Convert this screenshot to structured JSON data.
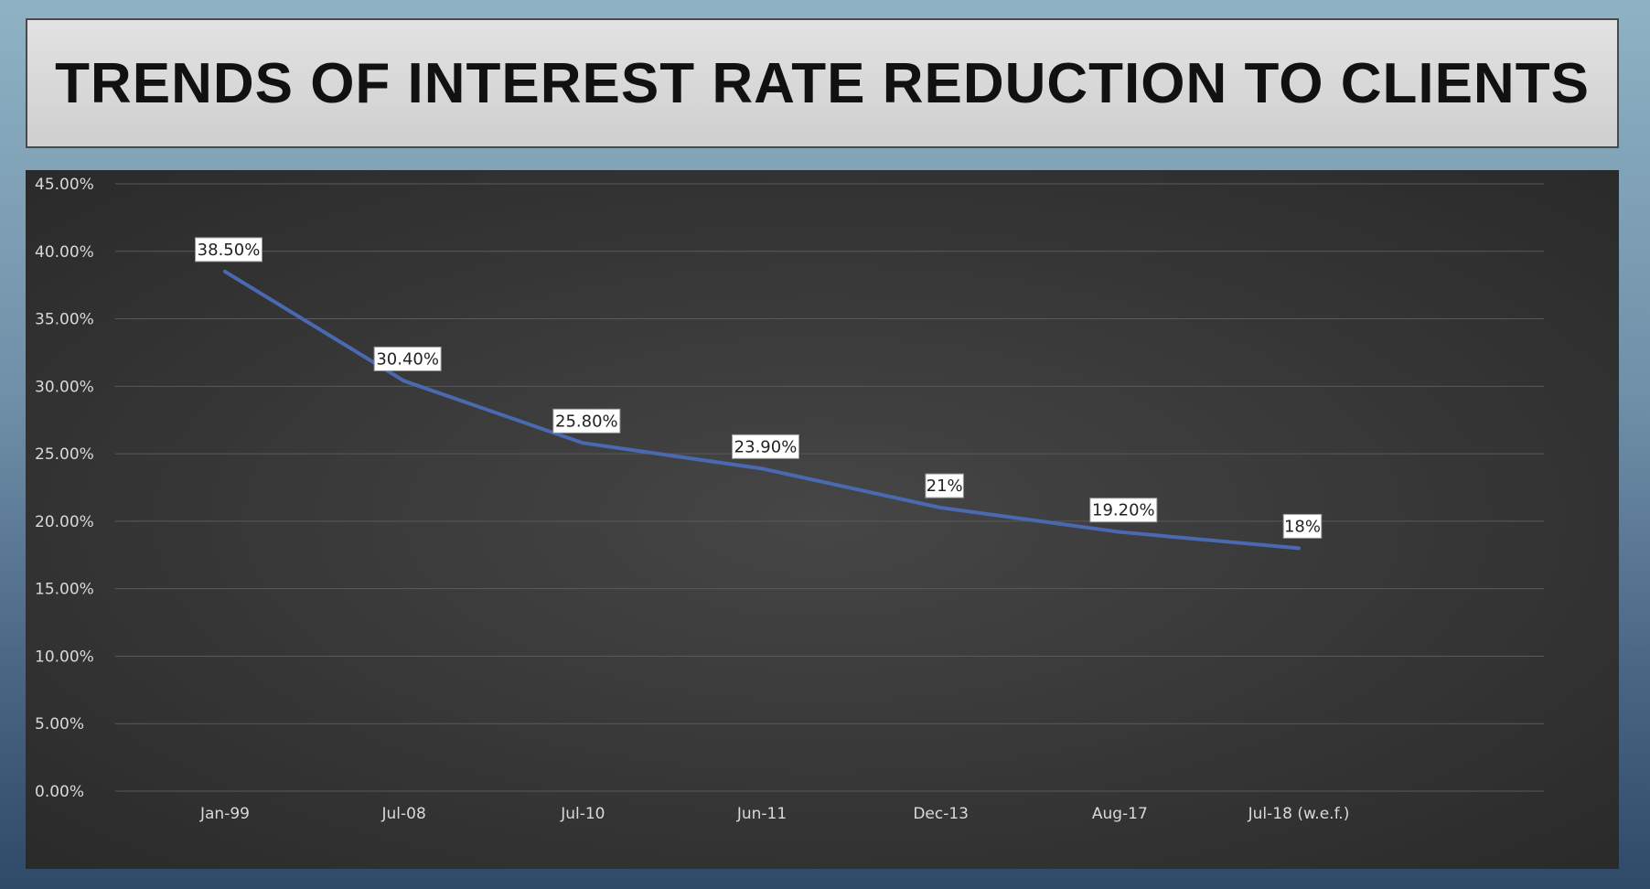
{
  "title": "TRENDS OF INTEREST RATE REDUCTION TO CLIENTS",
  "chart_data": {
    "type": "line",
    "title": "TRENDS OF INTEREST RATE REDUCTION TO CLIENTS",
    "categories": [
      "Jan-99",
      "Jul-08",
      "Jul-10",
      "Jun-11",
      "Dec-13",
      "Aug-17",
      "Jul-18 (w.e.f.)"
    ],
    "series": [
      {
        "values": [
          38.5,
          30.4,
          25.8,
          23.9,
          21,
          19.2,
          18
        ],
        "data_labels": [
          "38.50%",
          "30.40%",
          "25.80%",
          "23.90%",
          "21%",
          "19.20%",
          "18%"
        ],
        "color": "#4a69b0"
      }
    ],
    "ylim": [
      0,
      45
    ],
    "yticks": [
      "0.00%",
      "5.00%",
      "10.00%",
      "15.00%",
      "20.00%",
      "25.00%",
      "30.00%",
      "35.00%",
      "40.00%",
      "45.00%"
    ],
    "xlabel": "",
    "ylabel": "",
    "grid": true,
    "legend": "none"
  },
  "colors": {
    "line": "#4a69b0",
    "grid": "#5a5a5a",
    "panel": "#3a3a3a",
    "tick_text": "#d9d9d9",
    "label_bg": "#ffffff"
  }
}
